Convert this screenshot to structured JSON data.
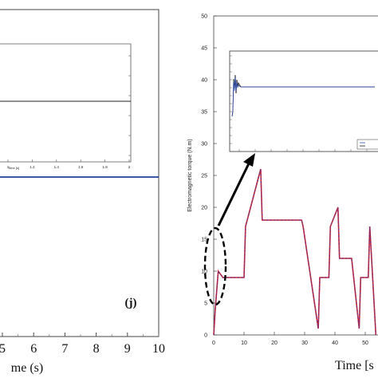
{
  "left_panel": {
    "panel_label": "(j)",
    "xlabel": "me (s)",
    "x_tick_labels": [
      "5",
      "6",
      "7",
      "8",
      "9",
      "10"
    ],
    "inset": {
      "xlabel": "Time [s]",
      "x_tick_labels": [
        "1",
        "1.2",
        "1.4",
        "1.6",
        "1.8",
        "2"
      ]
    }
  },
  "right_panel": {
    "ylabel": "Electromagnetic torque (N.m)",
    "xlabel": "Time [s",
    "y_tick_labels": [
      "0",
      "5",
      "10",
      "15",
      "20",
      "25",
      "30",
      "35",
      "40",
      "45",
      "50"
    ],
    "x_tick_labels": [
      "0",
      "10",
      "20",
      "30",
      "40",
      "50"
    ]
  },
  "colors": {
    "series_main": "#7a2a7a",
    "series_ref": "#d62728",
    "flat_line": "#1f3fa0",
    "annotation": "#000000"
  },
  "chart_data": [
    {
      "type": "line",
      "title": "",
      "xlabel": "me (s)",
      "ylabel": "",
      "xlim": [
        4.5,
        10
      ],
      "grid": false,
      "series": [
        {
          "x": [
            4.5,
            10
          ],
          "values": [
            0.5,
            0.5
          ]
        }
      ]
    },
    {
      "type": "line",
      "title": "",
      "xlabel": "Time [s]",
      "ylabel": "",
      "xlim": [
        1,
        2
      ],
      "grid": false,
      "series": [
        {
          "x": [
            1,
            2
          ],
          "values": [
            0,
            0
          ]
        }
      ]
    },
    {
      "type": "line",
      "title": "",
      "xlabel": "Time [s",
      "ylabel": "Electromagnetic torque (N.m)",
      "xlim": [
        0,
        55
      ],
      "ylim": [
        0,
        50
      ],
      "grid": false,
      "series": [
        {
          "x": [
            0,
            0.5,
            1.5,
            3,
            10,
            10.5,
            15.5,
            16,
            19.5,
            20,
            29,
            29.5,
            34.5,
            35,
            38,
            38.5,
            41,
            41.5,
            45,
            45.5,
            48,
            48.5,
            51,
            51.5,
            53.5
          ],
          "values": [
            0,
            4,
            10,
            9,
            9,
            17,
            26,
            18,
            18,
            18,
            18,
            17,
            1,
            9,
            9,
            17,
            20,
            12,
            12,
            12,
            1,
            9,
            9,
            17,
            0
          ]
        }
      ]
    }
  ]
}
